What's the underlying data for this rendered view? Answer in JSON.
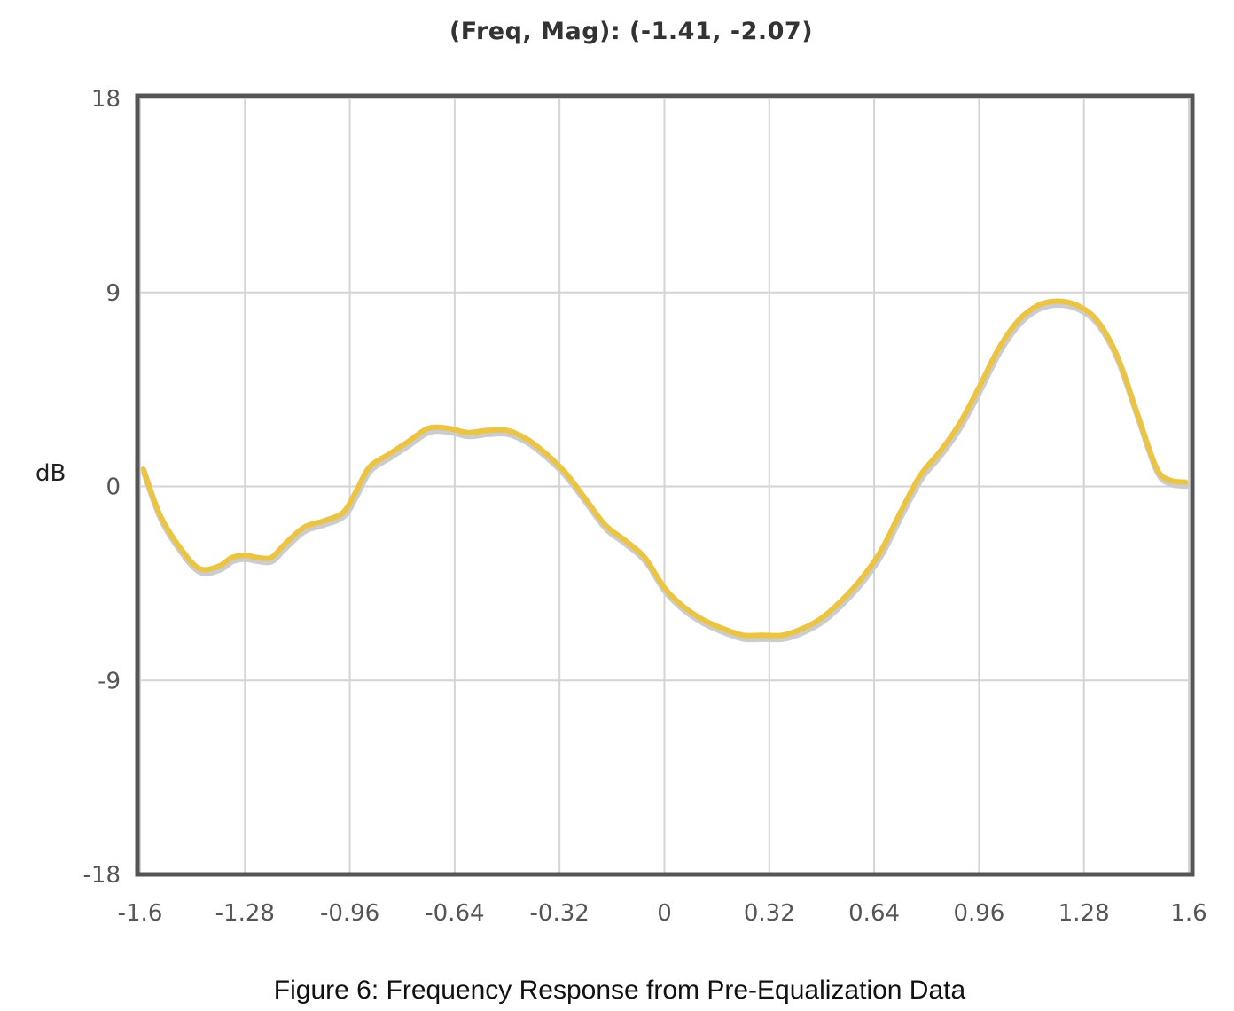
{
  "readout": {
    "text": "(Freq, Mag): (-1.41, -2.07)"
  },
  "caption": "Figure 6:  Frequency Response from Pre-Equalization Data",
  "colors": {
    "line": "#ecc444",
    "shadow": "#cccccc",
    "grid": "#d4d4d4",
    "frame": "#555555"
  },
  "chart_data": {
    "type": "line",
    "title": "",
    "xlabel": "",
    "ylabel": "dB",
    "xlim": [
      -1.6,
      1.6
    ],
    "ylim": [
      -18,
      18
    ],
    "x_ticks": [
      -1.6,
      -1.28,
      -0.96,
      -0.64,
      -0.32,
      0,
      0.32,
      0.64,
      0.96,
      1.28,
      1.6
    ],
    "x_tick_labels": [
      "-1.6",
      "-1.28",
      "-0.96",
      "-0.64",
      "-0.32",
      "0",
      "0.32",
      "0.64",
      "0.96",
      "1.28",
      "1.6"
    ],
    "y_ticks": [
      18,
      9,
      0,
      -9,
      -18
    ],
    "y_tick_labels": [
      "18",
      "9",
      "0",
      "-9",
      "-18"
    ],
    "grid": true,
    "series": [
      {
        "x": [
          -1.59,
          -1.54,
          -1.48,
          -1.42,
          -1.36,
          -1.32,
          -1.28,
          -1.24,
          -1.2,
          -1.16,
          -1.1,
          -1.04,
          -0.98,
          -0.94,
          -0.9,
          -0.84,
          -0.78,
          -0.72,
          -0.66,
          -0.6,
          -0.54,
          -0.48,
          -0.42,
          -0.36,
          -0.3,
          -0.24,
          -0.18,
          -0.12,
          -0.06,
          0,
          0.06,
          0.12,
          0.18,
          0.24,
          0.3,
          0.36,
          0.42,
          0.48,
          0.54,
          0.6,
          0.66,
          0.72,
          0.78,
          0.84,
          0.9,
          0.96,
          1.02,
          1.08,
          1.14,
          1.2,
          1.26,
          1.32,
          1.38,
          1.44,
          1.5,
          1.54,
          1.59
        ],
        "y": [
          0.8,
          -1.3,
          -2.8,
          -3.8,
          -3.7,
          -3.3,
          -3.2,
          -3.3,
          -3.3,
          -2.7,
          -1.9,
          -1.6,
          -1.2,
          -0.2,
          0.9,
          1.5,
          2.1,
          2.7,
          2.7,
          2.5,
          2.6,
          2.6,
          2.2,
          1.5,
          0.6,
          -0.6,
          -1.8,
          -2.5,
          -3.3,
          -4.7,
          -5.6,
          -6.2,
          -6.6,
          -6.9,
          -6.9,
          -6.9,
          -6.6,
          -6.1,
          -5.3,
          -4.3,
          -3.0,
          -1.2,
          0.5,
          1.6,
          2.9,
          4.6,
          6.4,
          7.7,
          8.4,
          8.6,
          8.4,
          7.7,
          6.1,
          3.5,
          0.9,
          0.3,
          0.2
        ]
      }
    ]
  }
}
